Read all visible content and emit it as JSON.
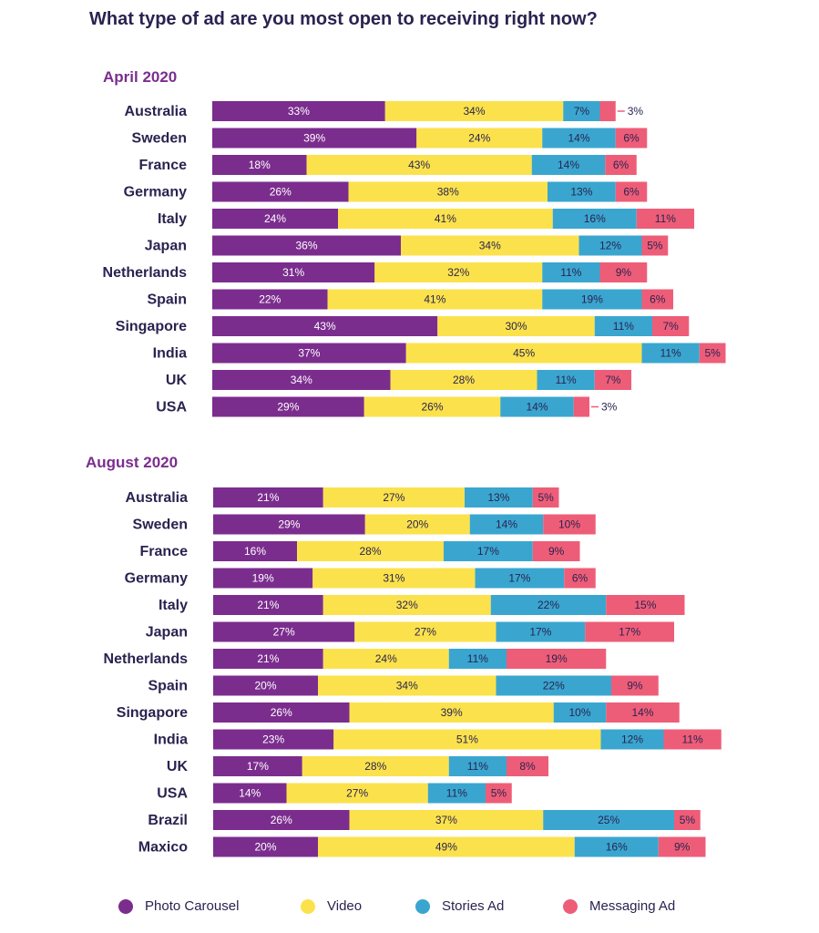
{
  "title": "What type of ad are you most open to receiving right now?",
  "legend": [
    {
      "name": "Photo Carousel",
      "color": "#7b2d8e"
    },
    {
      "name": "Video",
      "color": "#fbe24c"
    },
    {
      "name": "Stories Ad",
      "color": "#3aa6cf"
    },
    {
      "name": "Messaging Ad",
      "color": "#ee5d78"
    }
  ],
  "chart_data": [
    {
      "type": "bar",
      "stacked": true,
      "orientation": "horizontal",
      "title": "April 2020",
      "categories": [
        "Australia",
        "Sweden",
        "France",
        "Germany",
        "Italy",
        "Japan",
        "Netherlands",
        "Spain",
        "Singapore",
        "India",
        "UK",
        "USA"
      ],
      "series": [
        {
          "name": "Photo Carousel",
          "values": [
            33,
            39,
            18,
            26,
            24,
            36,
            31,
            22,
            43,
            37,
            34,
            29
          ]
        },
        {
          "name": "Video",
          "values": [
            34,
            24,
            43,
            38,
            41,
            34,
            32,
            41,
            30,
            45,
            28,
            26
          ]
        },
        {
          "name": "Stories Ad",
          "values": [
            7,
            14,
            14,
            13,
            16,
            12,
            11,
            19,
            11,
            11,
            11,
            14
          ]
        },
        {
          "name": "Messaging Ad",
          "values": [
            3,
            6,
            6,
            6,
            11,
            5,
            9,
            6,
            7,
            5,
            7,
            3
          ]
        }
      ],
      "value_suffix": "%"
    },
    {
      "type": "bar",
      "stacked": true,
      "orientation": "horizontal",
      "title": "August 2020",
      "categories": [
        "Australia",
        "Sweden",
        "France",
        "Germany",
        "Italy",
        "Japan",
        "Netherlands",
        "Spain",
        "Singapore",
        "India",
        "UK",
        "USA",
        "Brazil",
        "Maxico"
      ],
      "series": [
        {
          "name": "Photo Carousel",
          "values": [
            21,
            29,
            16,
            19,
            21,
            27,
            21,
            20,
            26,
            23,
            17,
            14,
            26,
            20
          ]
        },
        {
          "name": "Video",
          "values": [
            27,
            20,
            28,
            31,
            32,
            27,
            24,
            34,
            39,
            51,
            28,
            27,
            37,
            49
          ]
        },
        {
          "name": "Stories Ad",
          "values": [
            13,
            14,
            17,
            17,
            22,
            17,
            11,
            22,
            10,
            12,
            11,
            11,
            25,
            16
          ]
        },
        {
          "name": "Messaging Ad",
          "values": [
            5,
            10,
            9,
            6,
            15,
            17,
            19,
            9,
            14,
            11,
            8,
            5,
            5,
            9
          ]
        }
      ],
      "value_suffix": "%"
    }
  ]
}
